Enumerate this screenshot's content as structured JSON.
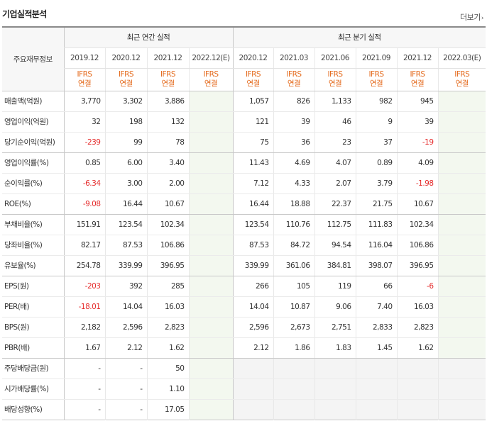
{
  "section_title": "기업실적분석",
  "more_label": "더보기",
  "table": {
    "row_header": "주요재무정보",
    "group_annual": "최근 연간 실적",
    "group_quarter": "최근 분기 실적",
    "periods": [
      "2019.12",
      "2020.12",
      "2021.12",
      "2022.12(E)",
      "2020.12",
      "2021.03",
      "2021.06",
      "2021.09",
      "2021.12",
      "2022.03(E)"
    ],
    "ifrs": [
      "IFRS",
      "IFRS",
      "IFRS",
      "IFRS",
      "IFRS",
      "IFRS",
      "IFRS",
      "IFRS",
      "IFRS",
      "IFRS"
    ],
    "basis": [
      "연결",
      "연결",
      "연결",
      "연결",
      "연결",
      "연결",
      "연결",
      "연결",
      "연결",
      "연결"
    ],
    "rows": [
      {
        "label": "매출액(억원)",
        "values": [
          "3,770",
          "3,302",
          "3,886",
          "",
          "1,057",
          "826",
          "1,133",
          "982",
          "945",
          ""
        ]
      },
      {
        "label": "영업이익(억원)",
        "values": [
          "32",
          "198",
          "132",
          "",
          "121",
          "39",
          "46",
          "9",
          "39",
          ""
        ]
      },
      {
        "label": "당기순이익(억원)",
        "values": [
          "-239",
          "99",
          "78",
          "",
          "75",
          "36",
          "23",
          "37",
          "-19",
          ""
        ]
      },
      {
        "label": "영업이익률(%)",
        "values": [
          "0.85",
          "6.00",
          "3.40",
          "",
          "11.43",
          "4.69",
          "4.07",
          "0.89",
          "4.09",
          ""
        ]
      },
      {
        "label": "순이익률(%)",
        "values": [
          "-6.34",
          "3.00",
          "2.00",
          "",
          "7.12",
          "4.33",
          "2.07",
          "3.79",
          "-1.98",
          ""
        ]
      },
      {
        "label": "ROE(%)",
        "values": [
          "-9.08",
          "16.44",
          "10.67",
          "",
          "16.44",
          "18.88",
          "22.37",
          "21.75",
          "10.67",
          ""
        ]
      },
      {
        "label": "부채비율(%)",
        "values": [
          "151.91",
          "123.54",
          "102.34",
          "",
          "123.54",
          "110.76",
          "112.75",
          "111.83",
          "102.34",
          ""
        ]
      },
      {
        "label": "당좌비율(%)",
        "values": [
          "82.17",
          "87.53",
          "106.86",
          "",
          "87.53",
          "84.72",
          "94.54",
          "116.04",
          "106.86",
          ""
        ]
      },
      {
        "label": "유보율(%)",
        "values": [
          "254.78",
          "339.99",
          "396.95",
          "",
          "339.99",
          "361.06",
          "384.81",
          "398.07",
          "396.95",
          ""
        ]
      },
      {
        "label": "EPS(원)",
        "values": [
          "-203",
          "392",
          "285",
          "",
          "266",
          "105",
          "119",
          "66",
          "-6",
          ""
        ]
      },
      {
        "label": "PER(배)",
        "values": [
          "-18.01",
          "14.04",
          "16.03",
          "",
          "14.04",
          "10.87",
          "9.06",
          "7.40",
          "16.03",
          ""
        ]
      },
      {
        "label": "BPS(원)",
        "values": [
          "2,182",
          "2,596",
          "2,823",
          "",
          "2,596",
          "2,673",
          "2,751",
          "2,833",
          "2,823",
          ""
        ]
      },
      {
        "label": "PBR(배)",
        "values": [
          "1.67",
          "2.12",
          "1.62",
          "",
          "2.12",
          "1.86",
          "1.83",
          "1.45",
          "1.62",
          ""
        ]
      },
      {
        "label": "주당배당금(원)",
        "values": [
          "-",
          "-",
          "50",
          "",
          "",
          "",
          "",
          "",
          "",
          ""
        ]
      },
      {
        "label": "시가배당률(%)",
        "values": [
          "-",
          "-",
          "1.10",
          "",
          "",
          "",
          "",
          "",
          "",
          ""
        ]
      },
      {
        "label": "배당성향(%)",
        "values": [
          "-",
          "-",
          "17.05",
          "",
          "",
          "",
          "",
          "",
          "",
          ""
        ]
      }
    ]
  }
}
